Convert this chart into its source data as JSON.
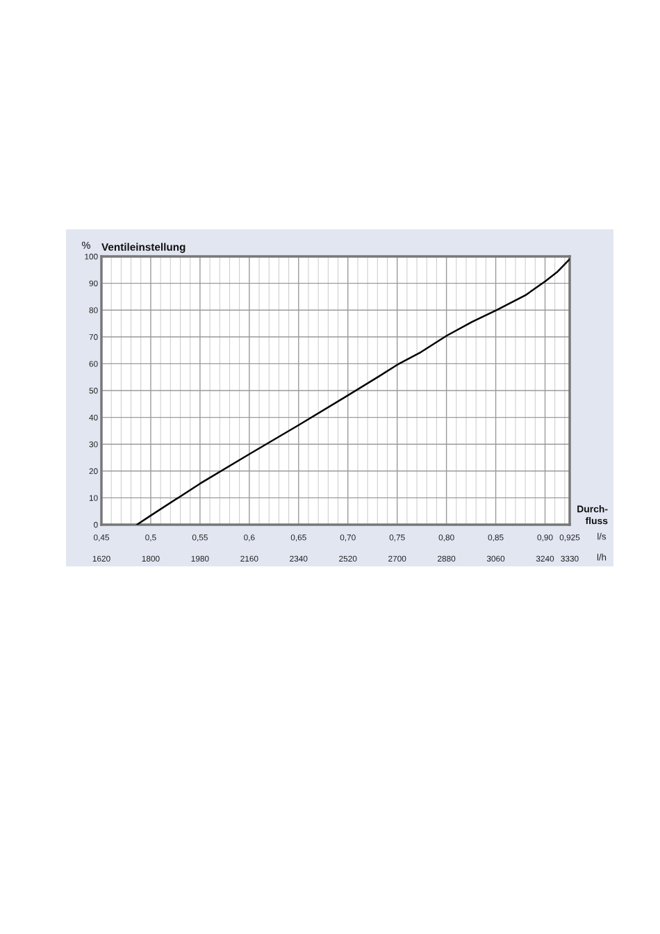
{
  "chart_data": {
    "type": "line",
    "title": "Ventileinstellung",
    "ylabel": "%",
    "xlabel": "Durch-\nfluss",
    "annotations": [
      "l/s",
      "l/h"
    ],
    "x": [
      0.486,
      0.5,
      0.55,
      0.6,
      0.65,
      0.696,
      0.732,
      0.75,
      0.774,
      0.8,
      0.826,
      0.851,
      0.88,
      0.9,
      0.912,
      0.925
    ],
    "series": [
      {
        "color": "#000000",
        "values": [
          0,
          3.4,
          15.3,
          26.3,
          37.1,
          47.3,
          55.4,
          59.6,
          64.3,
          70.4,
          75.6,
          80.0,
          85.5,
          90.7,
          94.1,
          99.0
        ]
      }
    ],
    "xlim": [
      0.45,
      0.925
    ],
    "xticks": [
      {
        "value": 0.45,
        "label": "0,45"
      },
      {
        "value": 0.5,
        "label": "0,5"
      },
      {
        "value": 0.55,
        "label": "0,55"
      },
      {
        "value": 0.6,
        "label": "0,6"
      },
      {
        "value": 0.65,
        "label": "0,65"
      },
      {
        "value": 0.7,
        "label": "0,70"
      },
      {
        "value": 0.75,
        "label": "0,75"
      },
      {
        "value": 0.8,
        "label": "0,80"
      },
      {
        "value": 0.85,
        "label": "0,85"
      },
      {
        "value": 0.9,
        "label": "0,90"
      },
      {
        "value": 0.925,
        "label": "0,925"
      }
    ],
    "x2lim": [
      1620,
      3330
    ],
    "x2ticks": [
      1620,
      1800,
      1980,
      2160,
      2340,
      2520,
      2700,
      2880,
      3060,
      3240,
      3330
    ],
    "ylim": [
      0,
      100
    ],
    "yticks": [
      0,
      10,
      20,
      30,
      40,
      50,
      60,
      70,
      80,
      90,
      100
    ],
    "grid": true,
    "marker": "none",
    "line_style": "solid"
  }
}
